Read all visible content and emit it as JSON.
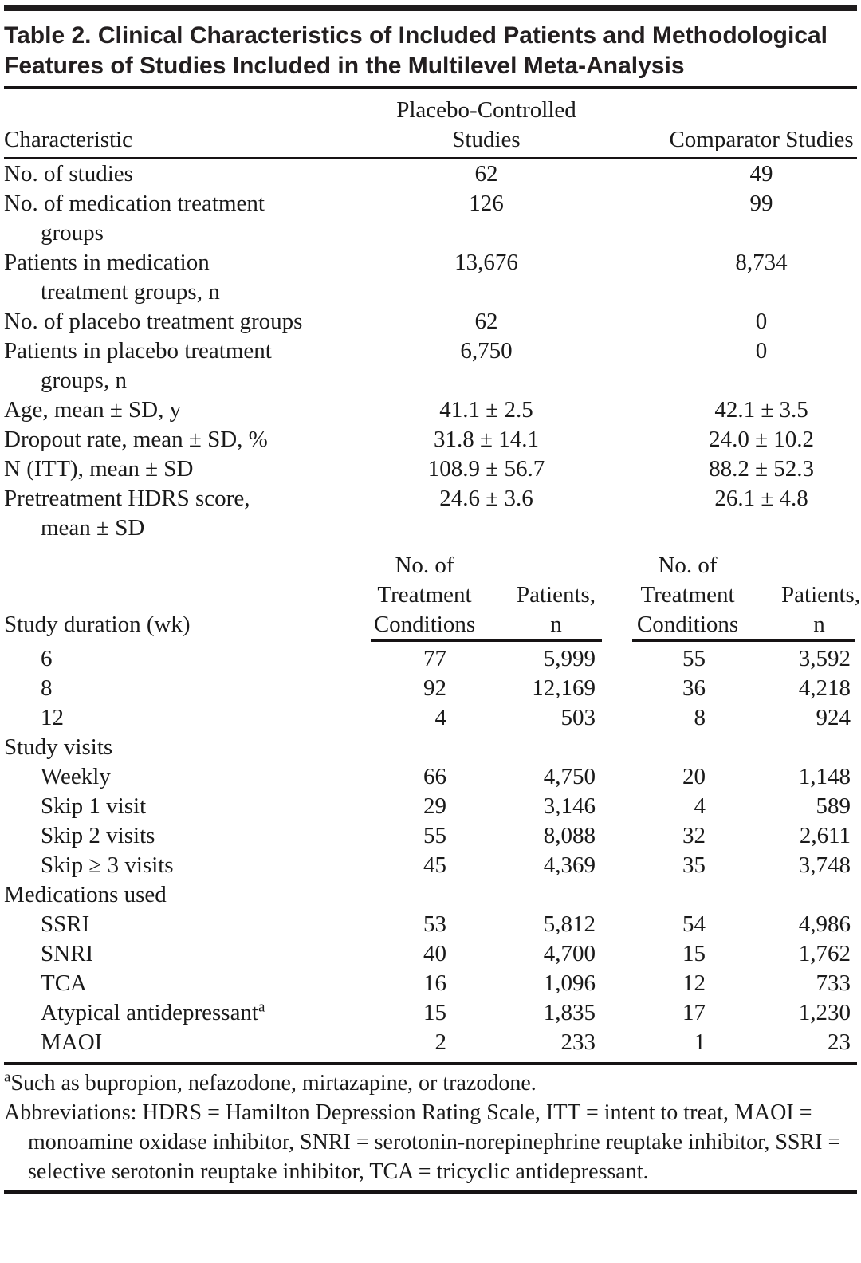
{
  "page": {
    "background": "#ffffff",
    "text_color": "#1a1a1a",
    "rule_color": "#161314"
  },
  "table": {
    "title": "Table 2. Clinical Characteristics of Included Patients and Methodological Features of Studies Included in the Multilevel Meta-Analysis",
    "columns": {
      "characteristic": "Characteristic",
      "placebo_line1": "Placebo-Controlled",
      "placebo_line2": "Studies",
      "comparator": "Comparator Studies"
    },
    "clinical_rows": [
      {
        "label": "No. of studies",
        "placebo": "62",
        "comparator": "49"
      },
      {
        "label": "No. of medication treatment",
        "label2": "groups",
        "placebo": "126",
        "comparator": "99"
      },
      {
        "label": "Patients in medication",
        "label2": "treatment groups, n",
        "placebo": "13,676",
        "comparator": "8,734"
      },
      {
        "label": "No. of placebo treatment groups",
        "placebo": "62",
        "comparator": "0"
      },
      {
        "label": "Patients in placebo treatment",
        "label2": "groups, n",
        "placebo": "6,750",
        "comparator": "0"
      },
      {
        "label": "Age, mean ± SD, y",
        "placebo": "41.1 ± 2.5",
        "comparator": "42.1 ± 3.5"
      },
      {
        "label": "Dropout rate, mean ± SD, %",
        "placebo": "31.8 ± 14.1",
        "comparator": "24.0 ± 10.2"
      },
      {
        "label": "N (ITT), mean ± SD",
        "placebo": "108.9 ± 56.7",
        "comparator": "88.2 ± 52.3"
      },
      {
        "label": "Pretreatment HDRS score,",
        "label2": "mean ± SD",
        "placebo": "24.6 ± 3.6",
        "comparator": "26.1 ± 4.8"
      }
    ],
    "sub_columns": {
      "duration_label": "Study duration (wk)",
      "no_of": "No. of",
      "treatment": "Treatment",
      "conditions": "Conditions",
      "patients": "Patients,",
      "n": "n"
    },
    "study_rows": [
      {
        "label": "6",
        "c1": "77",
        "p1": "5,999",
        "c2": "55",
        "p2": "3,592"
      },
      {
        "label": "8",
        "c1": "92",
        "p1": "12,169",
        "c2": "36",
        "p2": "4,218"
      },
      {
        "label": "12",
        "c1": "4",
        "p1": "503",
        "c2": "8",
        "p2": "924"
      },
      {
        "label": "Study visits"
      },
      {
        "label": "Weekly",
        "c1": "66",
        "p1": "4,750",
        "c2": "20",
        "p2": "1,148"
      },
      {
        "label": "Skip 1 visit",
        "c1": "29",
        "p1": "3,146",
        "c2": "4",
        "p2": "589"
      },
      {
        "label": "Skip 2 visits",
        "c1": "55",
        "p1": "8,088",
        "c2": "32",
        "p2": "2,611"
      },
      {
        "label": "Skip ≥ 3 visits",
        "c1": "45",
        "p1": "4,369",
        "c2": "35",
        "p2": "3,748"
      },
      {
        "label": "Medications used"
      },
      {
        "label": "SSRI",
        "c1": "53",
        "p1": "5,812",
        "c2": "54",
        "p2": "4,986"
      },
      {
        "label": "SNRI",
        "c1": "40",
        "p1": "4,700",
        "c2": "15",
        "p2": "1,762"
      },
      {
        "label": "TCA",
        "c1": "16",
        "p1": "1,096",
        "c2": "12",
        "p2": "733"
      },
      {
        "label": "Atypical antidepressant",
        "sup": "a",
        "c1": "15",
        "p1": "1,835",
        "c2": "17",
        "p2": "1,230"
      },
      {
        "label": "MAOI",
        "c1": "2",
        "p1": "233",
        "c2": "1",
        "p2": "23"
      }
    ]
  },
  "footnotes": {
    "marker": "a",
    "note_a": "Such as bupropion, nefazodone, mirtazapine, or trazodone.",
    "abbreviations": "Abbreviations: HDRS = Hamilton Depression Rating Scale, ITT = intent to treat, MAOI = monoamine oxidase inhibitor, SNRI = serotonin-norepinephrine reuptake inhibitor, SSRI = selective serotonin reuptake inhibitor, TCA = tricyclic antidepressant."
  }
}
